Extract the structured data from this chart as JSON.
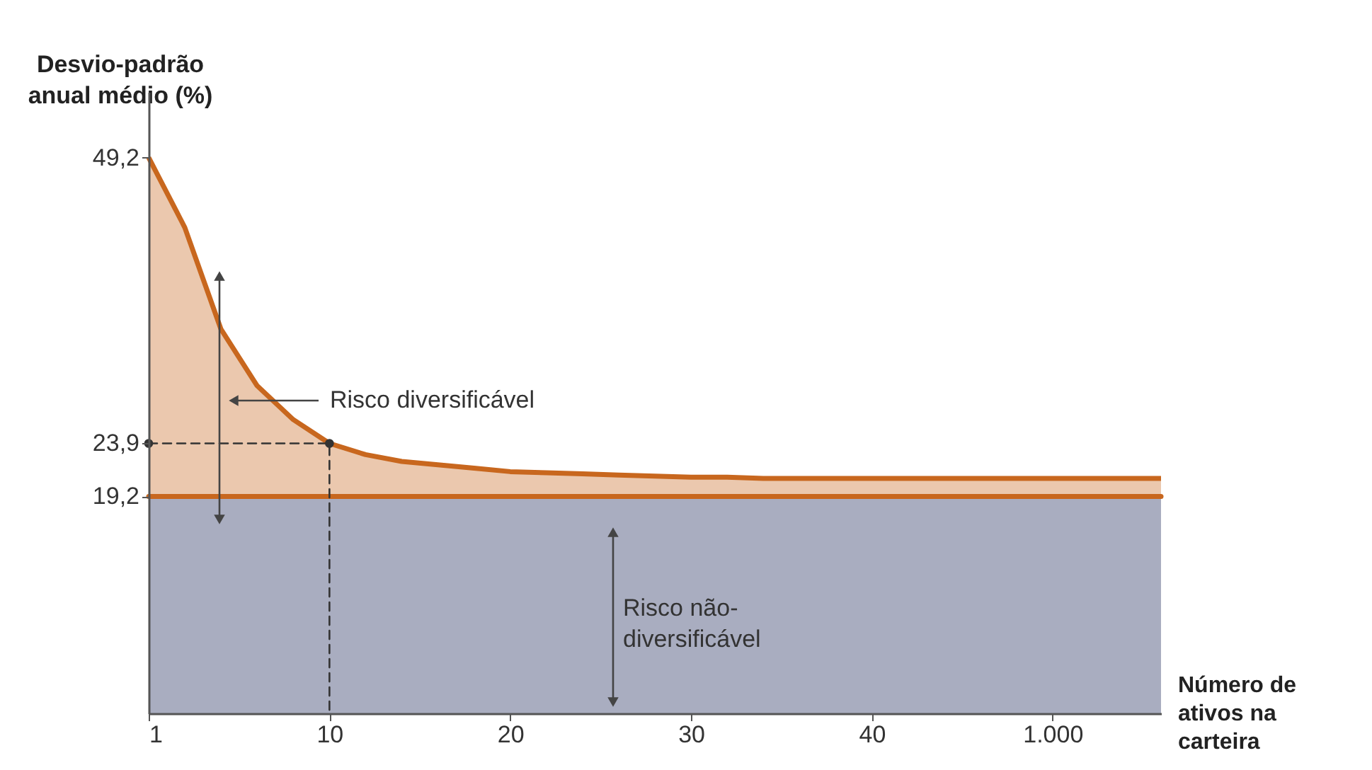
{
  "chart_data": {
    "type": "area",
    "xlabel": "Número de ativos na carteira",
    "ylabel": "Desvio-padrão anual médio (%)",
    "categories": [
      "1",
      null,
      null,
      null,
      null,
      "10",
      null,
      null,
      null,
      null,
      "20",
      null,
      null,
      null,
      null,
      "30",
      null,
      null,
      null,
      null,
      "40",
      null,
      null,
      null,
      null,
      "1.000",
      null,
      null,
      null
    ],
    "ylim": [
      0,
      55
    ],
    "yticks": [
      {
        "value": 19.2,
        "label": "19,2"
      },
      {
        "value": 23.9,
        "label": "23,9"
      },
      {
        "value": 49.2,
        "label": "49,2"
      }
    ],
    "grid": false,
    "annotations": [
      "Risco diversificável",
      "Risco não-diversificável"
    ],
    "bands": [
      {
        "axis": "y",
        "from": 0,
        "to": 19.2,
        "color": "#a9adc0"
      }
    ],
    "series": [
      {
        "color": "#c8671e",
        "values": [
          49.2,
          43,
          34,
          29,
          26,
          23.9,
          22.9,
          22.3,
          22,
          21.7,
          21.4,
          21.3,
          21.2,
          21.1,
          21,
          20.9,
          20.9,
          20.8,
          20.8,
          20.8,
          20.8,
          20.8,
          20.8,
          20.8,
          20.8,
          20.8,
          20.8,
          20.8,
          20.8
        ]
      },
      {
        "type": "line",
        "color": "#c8671e",
        "values": [
          19.2,
          19.2,
          19.2,
          19.2,
          19.2,
          19.2,
          19.2,
          19.2,
          19.2,
          19.2,
          19.2,
          19.2,
          19.2,
          19.2,
          19.2,
          19.2,
          19.2,
          19.2,
          19.2,
          19.2,
          19.2,
          19.2,
          19.2,
          19.2,
          19.2,
          19.2,
          19.2,
          19.2,
          19.2
        ]
      },
      {
        "type": "line",
        "color": "#333333",
        "line_style": "dashed",
        "x": [
          "1",
          "10",
          "10"
        ],
        "values": [
          23.9,
          23.9,
          0
        ]
      },
      {
        "type": "scatter",
        "color": "#333333",
        "x": [
          "1",
          "10"
        ],
        "values": [
          23.9,
          23.9
        ]
      }
    ]
  }
}
